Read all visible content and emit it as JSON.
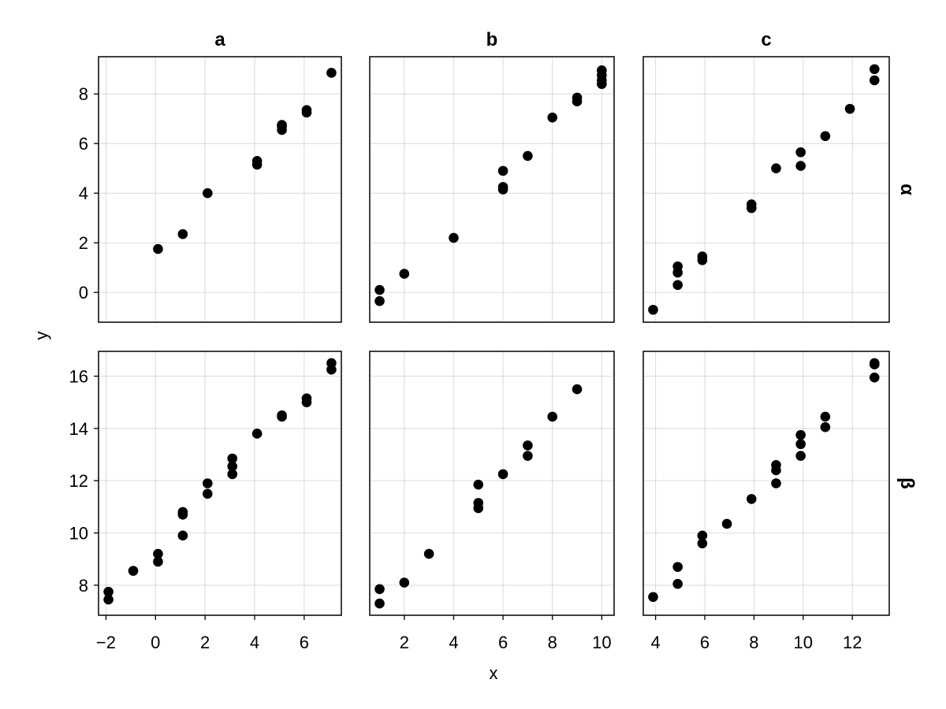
{
  "chart_data": {
    "type": "scatter",
    "xlabel": "x",
    "ylabel": "y",
    "columns": [
      "a",
      "b",
      "c"
    ],
    "rows": [
      "α",
      "β"
    ],
    "grid": true,
    "shared_x_by_column": true,
    "shared_y_by_row": true,
    "column_axes": [
      {
        "xlim": [
          -2.3,
          7.5
        ],
        "xticks": [
          -2,
          0,
          2,
          4,
          6
        ],
        "xtick_labels": [
          "−2",
          "0",
          "2",
          "4",
          "6"
        ]
      },
      {
        "xlim": [
          0.6,
          10.5
        ],
        "xticks": [
          2,
          4,
          6,
          8,
          10
        ],
        "xtick_labels": [
          "2",
          "4",
          "6",
          "8",
          "10"
        ]
      },
      {
        "xlim": [
          3.5,
          13.5
        ],
        "xticks": [
          4,
          6,
          8,
          10,
          12
        ],
        "xtick_labels": [
          "4",
          "6",
          "8",
          "10",
          "12"
        ]
      }
    ],
    "row_axes": [
      {
        "ylim": [
          -1.2,
          9.5
        ],
        "yticks": [
          0,
          2,
          4,
          6,
          8
        ],
        "ytick_labels": [
          "0",
          "2",
          "4",
          "6",
          "8"
        ]
      },
      {
        "ylim": [
          6.85,
          16.95
        ],
        "yticks": [
          8,
          10,
          12,
          14,
          16
        ],
        "ytick_labels": [
          "8",
          "10",
          "12",
          "14",
          "16"
        ]
      }
    ],
    "panels": [
      {
        "column": "a",
        "row": "α",
        "points": [
          [
            0.1,
            1.75
          ],
          [
            1.1,
            2.35
          ],
          [
            2.1,
            4.0
          ],
          [
            4.1,
            5.15
          ],
          [
            4.1,
            5.3
          ],
          [
            5.1,
            6.55
          ],
          [
            5.1,
            6.7
          ],
          [
            5.1,
            6.75
          ],
          [
            6.1,
            7.25
          ],
          [
            6.1,
            7.35
          ],
          [
            7.1,
            8.85
          ]
        ]
      },
      {
        "column": "b",
        "row": "α",
        "points": [
          [
            1.0,
            0.1
          ],
          [
            1.0,
            -0.35
          ],
          [
            2.0,
            0.75
          ],
          [
            4.0,
            2.2
          ],
          [
            6.0,
            4.15
          ],
          [
            6.0,
            4.25
          ],
          [
            6.0,
            4.9
          ],
          [
            7.0,
            5.5
          ],
          [
            8.0,
            7.05
          ],
          [
            9.0,
            7.7
          ],
          [
            9.0,
            7.85
          ],
          [
            10.0,
            8.4
          ],
          [
            10.0,
            8.55
          ],
          [
            10.0,
            8.75
          ],
          [
            10.0,
            8.95
          ]
        ]
      },
      {
        "column": "c",
        "row": "α",
        "points": [
          [
            3.9,
            -0.7
          ],
          [
            4.9,
            0.3
          ],
          [
            4.9,
            0.8
          ],
          [
            4.9,
            1.05
          ],
          [
            5.9,
            1.3
          ],
          [
            5.9,
            1.45
          ],
          [
            7.9,
            3.4
          ],
          [
            7.9,
            3.55
          ],
          [
            8.9,
            5.0
          ],
          [
            9.9,
            5.1
          ],
          [
            9.9,
            5.65
          ],
          [
            10.9,
            6.3
          ],
          [
            11.9,
            7.4
          ],
          [
            12.9,
            8.55
          ],
          [
            12.9,
            9.0
          ]
        ]
      },
      {
        "column": "a",
        "row": "β",
        "points": [
          [
            -1.9,
            7.45
          ],
          [
            -1.9,
            7.75
          ],
          [
            -0.9,
            8.55
          ],
          [
            0.1,
            8.9
          ],
          [
            0.1,
            9.2
          ],
          [
            1.1,
            9.9
          ],
          [
            1.1,
            10.7
          ],
          [
            1.1,
            10.8
          ],
          [
            2.1,
            11.5
          ],
          [
            2.1,
            11.9
          ],
          [
            3.1,
            12.25
          ],
          [
            3.1,
            12.55
          ],
          [
            3.1,
            12.85
          ],
          [
            4.1,
            13.8
          ],
          [
            5.1,
            14.45
          ],
          [
            5.1,
            14.5
          ],
          [
            6.1,
            15.0
          ],
          [
            6.1,
            15.15
          ],
          [
            7.1,
            16.25
          ],
          [
            7.1,
            16.5
          ]
        ]
      },
      {
        "column": "b",
        "row": "β",
        "points": [
          [
            1.0,
            7.3
          ],
          [
            1.0,
            7.85
          ],
          [
            2.0,
            8.1
          ],
          [
            3.0,
            9.2
          ],
          [
            5.0,
            10.95
          ],
          [
            5.0,
            11.15
          ],
          [
            5.0,
            11.85
          ],
          [
            6.0,
            12.25
          ],
          [
            7.0,
            12.95
          ],
          [
            7.0,
            13.35
          ],
          [
            8.0,
            14.45
          ],
          [
            9.0,
            15.5
          ]
        ]
      },
      {
        "column": "c",
        "row": "β",
        "points": [
          [
            3.9,
            7.55
          ],
          [
            4.9,
            8.05
          ],
          [
            4.9,
            8.7
          ],
          [
            5.9,
            9.6
          ],
          [
            5.9,
            9.9
          ],
          [
            6.9,
            10.35
          ],
          [
            7.9,
            11.3
          ],
          [
            8.9,
            11.9
          ],
          [
            8.9,
            12.4
          ],
          [
            8.9,
            12.6
          ],
          [
            9.9,
            12.95
          ],
          [
            9.9,
            13.4
          ],
          [
            9.9,
            13.75
          ],
          [
            10.9,
            14.05
          ],
          [
            10.9,
            14.45
          ],
          [
            12.9,
            15.95
          ],
          [
            12.9,
            16.45
          ],
          [
            12.9,
            16.5
          ]
        ]
      }
    ]
  },
  "colors": {
    "marker": "#000000",
    "frame": "#000000",
    "grid": "#000000",
    "background": "#ffffff"
  }
}
